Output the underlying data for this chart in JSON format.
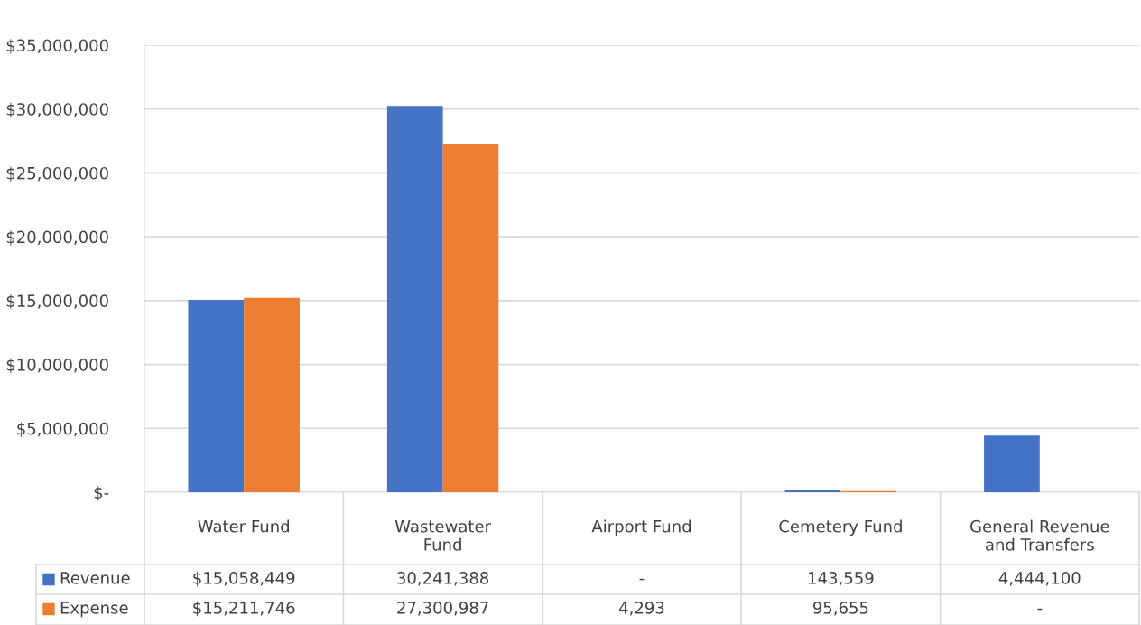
{
  "chart_data": {
    "type": "bar",
    "categories": [
      "Water Fund",
      "Wastewater Fund",
      "Airport Fund",
      "Cemetery Fund",
      "General Revenue and Transfers"
    ],
    "series": [
      {
        "name": "Revenue",
        "color": "#4472c4",
        "values": [
          15058449,
          30241388,
          0,
          143559,
          4444100
        ],
        "value_labels": [
          "$15,058,449",
          "30,241,388",
          "-",
          "143,559",
          "4,444,100"
        ]
      },
      {
        "name": "Expense",
        "color": "#ed7d31",
        "values": [
          15211746,
          27300987,
          4293,
          95655,
          0
        ],
        "value_labels": [
          "$15,211,746",
          "27,300,987",
          "4,293",
          "95,655",
          "-"
        ]
      }
    ],
    "ylim": [
      0,
      35000000
    ],
    "yticks": [
      {
        "value": 0,
        "label": "$-"
      },
      {
        "value": 5000000,
        "label": "$5,000,000"
      },
      {
        "value": 10000000,
        "label": "$10,000,000"
      },
      {
        "value": 15000000,
        "label": "$15,000,000"
      },
      {
        "value": 20000000,
        "label": "$20,000,000"
      },
      {
        "value": 25000000,
        "label": "$25,000,000"
      },
      {
        "value": 30000000,
        "label": "$30,000,000"
      },
      {
        "value": 35000000,
        "label": "$35,000,000"
      }
    ],
    "grid": "y",
    "legend": "bottom"
  }
}
